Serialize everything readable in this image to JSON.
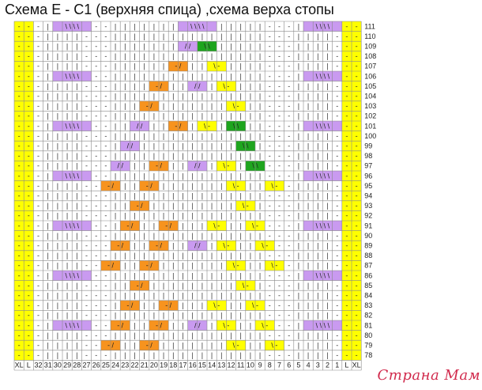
{
  "title": "Схема E - C1 (верхняя спица) ,схема верха стопы",
  "watermark": "Страна Мам",
  "left_size_labels": [
    "XL",
    "L"
  ],
  "right_size_labels": [
    "L",
    "XL"
  ],
  "column_numbers": [
    32,
    31,
    30,
    29,
    28,
    27,
    26,
    25,
    24,
    23,
    22,
    21,
    20,
    19,
    18,
    17,
    16,
    15,
    14,
    13,
    12,
    11,
    10,
    9,
    8,
    7,
    6,
    5,
    4,
    3,
    2,
    1
  ],
  "row_numbers": [
    111,
    110,
    109,
    108,
    107,
    106,
    105,
    104,
    103,
    102,
    101,
    100,
    99,
    98,
    97,
    96,
    95,
    94,
    93,
    92,
    91,
    90,
    89,
    88,
    87,
    86,
    85,
    84,
    83,
    82,
    81,
    80,
    79,
    78
  ],
  "colors": {
    "size_column": "#ffff00",
    "purple": "#c99af0",
    "orange": "#f7931e",
    "yellow": "#ffff00",
    "green": "#1ea51e",
    "grid_line": "#8a8a8a"
  },
  "symbols": {
    "knit": "|",
    "purl": "-",
    "cable_4": "\\ \\ \\ \\",
    "cross_right": "/ /",
    "cross_left": "\\ \\",
    "twist_orange": "- /",
    "twist_yellow": "\\ -"
  },
  "cells": [
    {
      "r": 111,
      "c": 30,
      "w": 4,
      "k": "purple",
      "t": "\\ \\ \\ \\"
    },
    {
      "r": 111,
      "c": 17,
      "w": 4,
      "k": "purple",
      "t": "\\ \\ \\ \\"
    },
    {
      "r": 111,
      "c": 4,
      "w": 4,
      "k": "purple",
      "t": "\\ \\ \\ \\"
    },
    {
      "r": 109,
      "c": 17,
      "w": 2,
      "k": "purple",
      "t": "/ /"
    },
    {
      "r": 109,
      "c": 15,
      "w": 2,
      "k": "green",
      "t": "\\ \\"
    },
    {
      "r": 107,
      "c": 18,
      "w": 2,
      "k": "orange",
      "t": "- /"
    },
    {
      "r": 107,
      "c": 14,
      "w": 2,
      "k": "yellow",
      "t": "\\ -"
    },
    {
      "r": 106,
      "c": 30,
      "w": 4,
      "k": "purple",
      "t": "\\ \\ \\ \\"
    },
    {
      "r": 106,
      "c": 4,
      "w": 4,
      "k": "purple",
      "t": "\\ \\ \\ \\"
    },
    {
      "r": 105,
      "c": 20,
      "w": 2,
      "k": "orange",
      "t": "- /"
    },
    {
      "r": 105,
      "c": 16,
      "w": 2,
      "k": "purple",
      "t": "/ /"
    },
    {
      "r": 105,
      "c": 13,
      "w": 2,
      "k": "yellow",
      "t": "\\ -"
    },
    {
      "r": 103,
      "c": 21,
      "w": 2,
      "k": "orange",
      "t": "- /"
    },
    {
      "r": 103,
      "c": 12,
      "w": 2,
      "k": "yellow",
      "t": "\\ -"
    },
    {
      "r": 101,
      "c": 30,
      "w": 4,
      "k": "purple",
      "t": "\\ \\ \\ \\"
    },
    {
      "r": 101,
      "c": 22,
      "w": 2,
      "k": "purple",
      "t": "/ /"
    },
    {
      "r": 101,
      "c": 18,
      "w": 2,
      "k": "orange",
      "t": "- /"
    },
    {
      "r": 101,
      "c": 15,
      "w": 2,
      "k": "yellow",
      "t": "\\ -"
    },
    {
      "r": 101,
      "c": 12,
      "w": 2,
      "k": "green",
      "t": "\\ \\"
    },
    {
      "r": 101,
      "c": 4,
      "w": 4,
      "k": "purple",
      "t": "\\ \\ \\ \\"
    },
    {
      "r": 99,
      "c": 23,
      "w": 2,
      "k": "purple",
      "t": "/ /"
    },
    {
      "r": 99,
      "c": 11,
      "w": 2,
      "k": "green",
      "t": "\\ \\"
    },
    {
      "r": 97,
      "c": 24,
      "w": 2,
      "k": "purple",
      "t": "/ /"
    },
    {
      "r": 97,
      "c": 20,
      "w": 2,
      "k": "orange",
      "t": "- /"
    },
    {
      "r": 97,
      "c": 16,
      "w": 2,
      "k": "purple",
      "t": "/ /"
    },
    {
      "r": 97,
      "c": 13,
      "w": 2,
      "k": "yellow",
      "t": "\\ -"
    },
    {
      "r": 97,
      "c": 10,
      "w": 2,
      "k": "green",
      "t": "\\ \\"
    },
    {
      "r": 96,
      "c": 30,
      "w": 4,
      "k": "purple",
      "t": "\\ \\ \\ \\"
    },
    {
      "r": 96,
      "c": 4,
      "w": 4,
      "k": "purple",
      "t": "\\ \\ \\ \\"
    },
    {
      "r": 95,
      "c": 25,
      "w": 2,
      "k": "orange",
      "t": "- /"
    },
    {
      "r": 95,
      "c": 21,
      "w": 2,
      "k": "orange",
      "t": "- /"
    },
    {
      "r": 95,
      "c": 12,
      "w": 2,
      "k": "yellow",
      "t": "\\ -"
    },
    {
      "r": 95,
      "c": 8,
      "w": 2,
      "k": "yellow",
      "t": "\\ -"
    },
    {
      "r": 93,
      "c": 22,
      "w": 2,
      "k": "orange",
      "t": "- /"
    },
    {
      "r": 93,
      "c": 11,
      "w": 2,
      "k": "yellow",
      "t": "\\ -"
    },
    {
      "r": 91,
      "c": 30,
      "w": 4,
      "k": "purple",
      "t": "\\ \\ \\ \\"
    },
    {
      "r": 91,
      "c": 23,
      "w": 2,
      "k": "orange",
      "t": "- /"
    },
    {
      "r": 91,
      "c": 19,
      "w": 2,
      "k": "orange",
      "t": "- /"
    },
    {
      "r": 91,
      "c": 14,
      "w": 2,
      "k": "yellow",
      "t": "\\ -"
    },
    {
      "r": 91,
      "c": 10,
      "w": 2,
      "k": "yellow",
      "t": "\\ -"
    },
    {
      "r": 91,
      "c": 4,
      "w": 4,
      "k": "purple",
      "t": "\\ \\ \\ \\"
    },
    {
      "r": 89,
      "c": 24,
      "w": 2,
      "k": "orange",
      "t": "- /"
    },
    {
      "r": 89,
      "c": 20,
      "w": 2,
      "k": "orange",
      "t": "- /"
    },
    {
      "r": 89,
      "c": 16,
      "w": 2,
      "k": "purple",
      "t": "/ /"
    },
    {
      "r": 89,
      "c": 13,
      "w": 2,
      "k": "yellow",
      "t": "\\ -"
    },
    {
      "r": 89,
      "c": 9,
      "w": 2,
      "k": "yellow",
      "t": "\\ -"
    },
    {
      "r": 87,
      "c": 25,
      "w": 2,
      "k": "orange",
      "t": "- /"
    },
    {
      "r": 87,
      "c": 21,
      "w": 2,
      "k": "orange",
      "t": "- /"
    },
    {
      "r": 87,
      "c": 12,
      "w": 2,
      "k": "yellow",
      "t": "\\ -"
    },
    {
      "r": 87,
      "c": 8,
      "w": 2,
      "k": "yellow",
      "t": "\\ -"
    },
    {
      "r": 86,
      "c": 30,
      "w": 4,
      "k": "purple",
      "t": "\\ \\ \\ \\"
    },
    {
      "r": 86,
      "c": 4,
      "w": 4,
      "k": "purple",
      "t": "\\ \\ \\ \\"
    },
    {
      "r": 85,
      "c": 22,
      "w": 2,
      "k": "orange",
      "t": "- /"
    },
    {
      "r": 85,
      "c": 11,
      "w": 2,
      "k": "yellow",
      "t": "\\ -"
    },
    {
      "r": 83,
      "c": 23,
      "w": 2,
      "k": "orange",
      "t": "- /"
    },
    {
      "r": 83,
      "c": 19,
      "w": 2,
      "k": "orange",
      "t": "- /"
    },
    {
      "r": 83,
      "c": 14,
      "w": 2,
      "k": "yellow",
      "t": "\\ -"
    },
    {
      "r": 83,
      "c": 10,
      "w": 2,
      "k": "yellow",
      "t": "\\ -"
    },
    {
      "r": 81,
      "c": 30,
      "w": 4,
      "k": "purple",
      "t": "\\ \\ \\ \\"
    },
    {
      "r": 81,
      "c": 24,
      "w": 2,
      "k": "orange",
      "t": "- /"
    },
    {
      "r": 81,
      "c": 20,
      "w": 2,
      "k": "orange",
      "t": "- /"
    },
    {
      "r": 81,
      "c": 16,
      "w": 2,
      "k": "purple",
      "t": "/ /"
    },
    {
      "r": 81,
      "c": 13,
      "w": 2,
      "k": "yellow",
      "t": "\\ -"
    },
    {
      "r": 81,
      "c": 9,
      "w": 2,
      "k": "yellow",
      "t": "\\ -"
    },
    {
      "r": 81,
      "c": 4,
      "w": 4,
      "k": "purple",
      "t": "\\ \\ \\ \\"
    },
    {
      "r": 79,
      "c": 25,
      "w": 2,
      "k": "orange",
      "t": "- /"
    },
    {
      "r": 79,
      "c": 21,
      "w": 2,
      "k": "orange",
      "t": "- /"
    },
    {
      "r": 79,
      "c": 12,
      "w": 2,
      "k": "yellow",
      "t": "\\ -"
    },
    {
      "r": 79,
      "c": 8,
      "w": 2,
      "k": "yellow",
      "t": "\\ -"
    }
  ],
  "purl_columns": [
    32,
    27,
    26,
    25,
    8,
    7,
    6,
    1
  ],
  "column_pattern_note": ""
}
